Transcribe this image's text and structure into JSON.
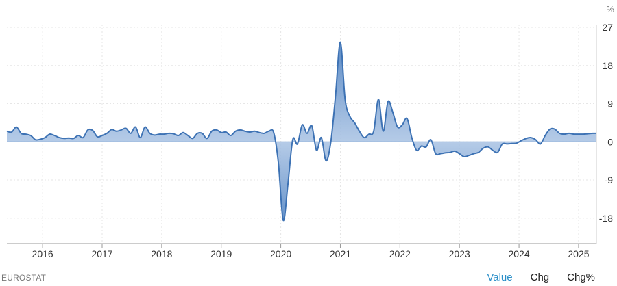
{
  "chart_data": {
    "type": "area",
    "unit": "%",
    "x_ticks": [
      "2016",
      "2017",
      "2018",
      "2019",
      "2020",
      "2021",
      "2022",
      "2023",
      "2024",
      "2025"
    ],
    "y_ticks": [
      "27",
      "18",
      "9",
      "0",
      "-9",
      "-18"
    ],
    "ylim": [
      -24,
      27
    ],
    "xlim": [
      2015.4,
      2025.3
    ],
    "grid": true,
    "line_color": "#3d72b4",
    "fill_color": "#4a7ebf",
    "x": [
      2015.4,
      2015.48,
      2015.56,
      2015.64,
      2015.72,
      2015.8,
      2015.88,
      2015.96,
      2016.04,
      2016.12,
      2016.2,
      2016.28,
      2016.36,
      2016.44,
      2016.52,
      2016.6,
      2016.68,
      2016.76,
      2016.84,
      2016.92,
      2017.0,
      2017.08,
      2017.16,
      2017.24,
      2017.32,
      2017.4,
      2017.48,
      2017.56,
      2017.64,
      2017.72,
      2017.8,
      2017.88,
      2017.96,
      2018.04,
      2018.12,
      2018.2,
      2018.28,
      2018.36,
      2018.44,
      2018.52,
      2018.6,
      2018.68,
      2018.76,
      2018.84,
      2018.92,
      2019.0,
      2019.08,
      2019.16,
      2019.24,
      2019.32,
      2019.4,
      2019.48,
      2019.56,
      2019.64,
      2019.72,
      2019.8,
      2019.88,
      2019.96,
      2020.04,
      2020.12,
      2020.2,
      2020.28,
      2020.36,
      2020.44,
      2020.52,
      2020.6,
      2020.68,
      2020.76,
      2020.84,
      2020.92,
      2021.0,
      2021.08,
      2021.16,
      2021.24,
      2021.32,
      2021.4,
      2021.48,
      2021.56,
      2021.64,
      2021.72,
      2021.8,
      2021.88,
      2021.96,
      2022.04,
      2022.12,
      2022.2,
      2022.28,
      2022.36,
      2022.44,
      2022.52,
      2022.6,
      2022.68,
      2022.76,
      2022.84,
      2022.92,
      2023.0,
      2023.08,
      2023.16,
      2023.24,
      2023.32,
      2023.4,
      2023.48,
      2023.56,
      2023.64,
      2023.72,
      2023.8,
      2023.88,
      2023.96,
      2024.04,
      2024.12,
      2024.2,
      2024.28,
      2024.36,
      2024.44,
      2024.52,
      2024.6,
      2024.68,
      2024.76,
      2024.84,
      2024.92,
      2025.0,
      2025.08,
      2025.16,
      2025.24,
      2025.3
    ],
    "values": [
      2.5,
      2.3,
      3.5,
      2.0,
      1.8,
      1.5,
      0.5,
      0.6,
      1.0,
      1.8,
      1.5,
      1.0,
      0.8,
      0.9,
      0.8,
      1.5,
      1.0,
      2.8,
      2.7,
      1.2,
      1.5,
      2.0,
      2.9,
      2.5,
      2.8,
      3.2,
      2.0,
      3.5,
      1.0,
      3.5,
      2.0,
      1.6,
      1.8,
      1.8,
      2.0,
      1.9,
      1.5,
      2.2,
      1.5,
      0.8,
      2.0,
      2.0,
      0.8,
      2.5,
      2.8,
      2.2,
      2.3,
      1.5,
      2.5,
      2.8,
      2.5,
      2.3,
      2.5,
      2.2,
      2.0,
      2.5,
      2.2,
      -5.0,
      -18.5,
      -10.0,
      0.5,
      -0.5,
      4.0,
      2.0,
      3.8,
      -2.0,
      1.0,
      -4.5,
      0.0,
      11.0,
      23.5,
      10.0,
      6.0,
      4.5,
      2.5,
      1.0,
      1.8,
      2.5,
      10.0,
      2.5,
      9.5,
      7.0,
      3.5,
      4.0,
      5.5,
      1.0,
      -2.0,
      -1.0,
      -1.2,
      0.5,
      -2.8,
      -2.8,
      -2.6,
      -2.5,
      -2.2,
      -2.8,
      -3.5,
      -3.2,
      -2.8,
      -2.5,
      -1.5,
      -1.2,
      -2.0,
      -2.5,
      -0.5,
      -0.5,
      -0.4,
      -0.3,
      0.3,
      0.8,
      1.0,
      0.5,
      -0.5,
      1.5,
      3.0,
      3.0,
      2.0,
      1.8,
      2.0,
      1.8,
      1.8,
      1.8,
      1.9,
      2.0,
      2.0
    ]
  },
  "footer": {
    "source": "EUROSTAT",
    "toggles": [
      "Value",
      "Chg",
      "Chg%"
    ],
    "active_toggle": "Value"
  }
}
